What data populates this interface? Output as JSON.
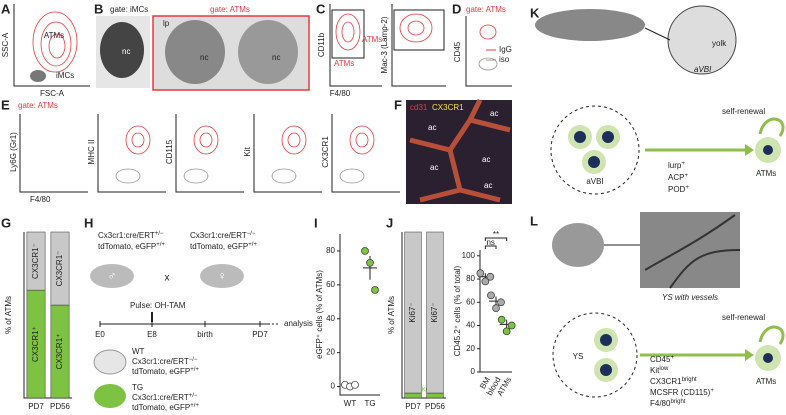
{
  "panel_labels": [
    "A",
    "B",
    "C",
    "D",
    "E",
    "F",
    "G",
    "H",
    "I",
    "J",
    "K",
    "L"
  ],
  "panel_a": {
    "y_axis": "SSC-A",
    "x_axis": "FSC-A",
    "gates": [
      "ATMs",
      "iMCs"
    ]
  },
  "panel_b": {
    "gates": [
      "gate: iMCs",
      "gate: ATMs"
    ],
    "labels": [
      "nc",
      "lp",
      "nc",
      "nc"
    ]
  },
  "panel_c": {
    "y_axes": [
      "CD11b",
      "Mac-3 (Lamp-2)"
    ],
    "x_axis": "F4/80",
    "gates": [
      "ATMs",
      "ATMs"
    ]
  },
  "panel_d": {
    "gate": "gate: ATMs",
    "y_axis": "CD45",
    "legend": [
      {
        "name": "IgG",
        "color": "#e8383d"
      },
      {
        "name": "iso",
        "color": "#999999"
      }
    ]
  },
  "panel_e": {
    "gate": "gate: ATMs",
    "y_axes": [
      "Ly6G (Gr1)",
      "MHC II",
      "CD115",
      "Kit",
      "CX3CR1"
    ],
    "x_axis": "F4/80"
  },
  "panel_f": {
    "stains": [
      "cd31",
      "CX3CR1"
    ],
    "labels": [
      "ac",
      "ac",
      "ac",
      "ac",
      "ac"
    ]
  },
  "panel_h": {
    "parents": [
      {
        "sex": "♂",
        "lines": [
          {
            "text": "Cx3cr1:cre/ERT",
            "sup": "+/−"
          },
          {
            "text": "tdTomato, eGFP",
            "sup": "+/+"
          }
        ]
      },
      {
        "sex": "♀",
        "lines": [
          {
            "text": "Cx3cr1:cre/ERT",
            "sup": "−/−"
          },
          {
            "text": "tdTomato, eGFP",
            "sup": "+/+"
          }
        ]
      }
    ],
    "cross": "x",
    "pulse": "Pulse: OH-TAM",
    "timeline": [
      "E0",
      "E8",
      "birth",
      "PD7"
    ],
    "readout": "analysis",
    "offspring": [
      {
        "name": "WT",
        "lines": [
          {
            "text": "Cx3cr1:cre/ERT",
            "sup": "−/−"
          },
          {
            "text": "tdTomato, eGFP",
            "sup": "+/+"
          }
        ]
      },
      {
        "name": "TG",
        "lines": [
          {
            "text": "Cx3cr1:cre/ERT",
            "sup": "+/−"
          },
          {
            "text": "tdTomato, eGFP",
            "sup": "+/+"
          }
        ]
      }
    ]
  },
  "panel_k": {
    "section_labels": [
      "yolk",
      "aVBI"
    ],
    "origin": "aVBI",
    "target": "ATMs",
    "renewal": "self-renewal",
    "markers": [
      {
        "text": "lurp",
        "sup": "+"
      },
      {
        "text": "ACP",
        "sup": "+"
      },
      {
        "text": "POD",
        "sup": "+"
      }
    ]
  },
  "panel_l": {
    "image_caption": "YS with vessels",
    "origin": "YS",
    "target": "ATMs",
    "renewal": "self-renewal",
    "markers": [
      {
        "text": "CD45",
        "sup": "+"
      },
      {
        "text": "Kit",
        "sup": "low"
      },
      {
        "text": "CX3CR1",
        "sup": "bright"
      },
      {
        "text": "MCSFR (CD115)",
        "sup": "+"
      },
      {
        "text": "F4/80",
        "sup": "bright"
      }
    ]
  },
  "chart_data": [
    {
      "type": "bar",
      "y_label": "% of ATMs",
      "categories": [
        "PD7",
        "PD56"
      ],
      "ylim": [
        0,
        100
      ],
      "series": [
        {
          "name": "CX3CR1⁺",
          "color": "#7dc242",
          "values": [
            65,
            56
          ]
        },
        {
          "name": "CX3CR1⁻",
          "color": "#c8c8c8",
          "values": [
            35,
            44
          ]
        }
      ]
    },
    {
      "type": "scatter",
      "y_label": "eGFP⁺ cells (% of ATMs)",
      "categories": [
        "WT",
        "TG"
      ],
      "ylim": [
        -5,
        90
      ],
      "yticks": [
        0,
        20,
        40,
        60,
        80
      ],
      "colors": [
        "#ffffff",
        "#7dc242"
      ],
      "values": [
        [
          1,
          0,
          1
        ],
        [
          80,
          73,
          57
        ]
      ],
      "means": [
        0.7,
        70
      ],
      "errors": [
        0.5,
        7
      ]
    },
    {
      "type": "bar",
      "y_label": "% of ATMs",
      "categories": [
        "PD7",
        "PD56"
      ],
      "ylim": [
        0,
        100
      ],
      "series": [
        {
          "name": "Ki67⁺",
          "color": "#7dc242",
          "values": [
            3,
            3
          ]
        },
        {
          "name": "Ki67⁻",
          "color": "#c8c8c8",
          "values": [
            97,
            97
          ]
        }
      ]
    },
    {
      "type": "scatter",
      "y_label": "CD45.2⁺ cells (% of total)",
      "categories": [
        "BM",
        "blood",
        "ATMs"
      ],
      "ylim": [
        0,
        105
      ],
      "yticks": [
        0,
        20,
        40,
        60,
        80,
        100
      ],
      "colors": [
        "#aaaaaa",
        "#aaaaaa",
        "#7dc242"
      ],
      "values": [
        [
          85,
          78,
          82
        ],
        [
          66,
          55,
          60
        ],
        [
          45,
          35,
          40
        ]
      ],
      "means": [
        82,
        61,
        41
      ],
      "errors": [
        3,
        4,
        4
      ],
      "annotations": [
        "ns",
        "**"
      ]
    }
  ]
}
